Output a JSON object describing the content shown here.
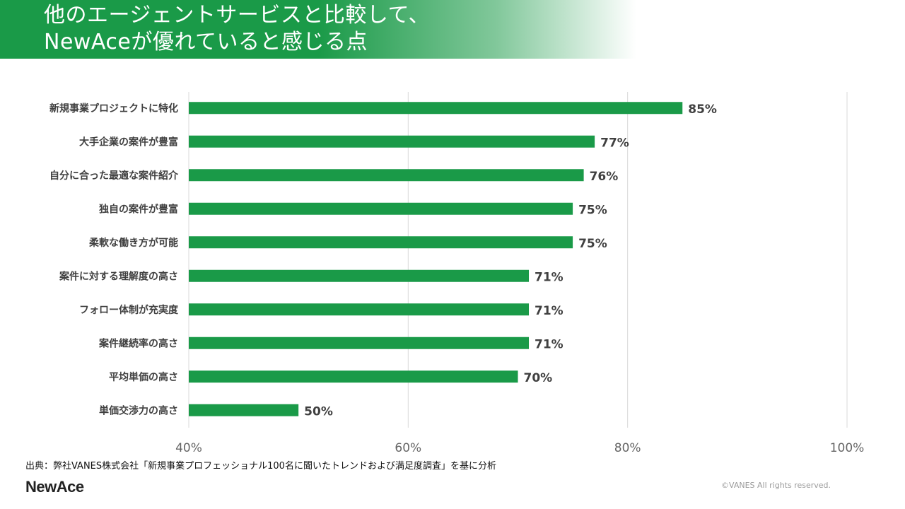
{
  "header": {
    "title_line1": "他のエージェントサービスと比較して、",
    "title_line2": "NewAceが優れていると感じる点"
  },
  "chart_data": {
    "type": "bar",
    "orientation": "horizontal",
    "categories": [
      "新規事業プロジェクトに特化",
      "大手企業の案件が豊富",
      "自分に合った最適な案件紹介",
      "独自の案件が豊富",
      "柔軟な働き方が可能",
      "案件に対する理解度の高さ",
      "フォロー体制が充実度",
      "案件継続率の高さ",
      "平均単価の高さ",
      "単価交渉力の高さ"
    ],
    "values": [
      85,
      77,
      76,
      75,
      75,
      71,
      71,
      71,
      70,
      50
    ],
    "value_labels": [
      "85%",
      "77%",
      "76%",
      "75%",
      "75%",
      "71%",
      "71%",
      "71%",
      "70%",
      "50%"
    ],
    "xlim": [
      40,
      100
    ],
    "x_ticks": [
      40,
      60,
      80,
      100
    ],
    "x_tick_labels": [
      "40%",
      "60%",
      "80%",
      "100%"
    ],
    "grid": true,
    "bar_color": "#1a9a48"
  },
  "footer": {
    "source": "出典：弊社VANES株式会社「新規事業プロフェッショナル100名に聞いたトレンドおよび満足度調査」を基に分析",
    "logo": "NewAce",
    "copyright": "©VANES All rights reserved."
  },
  "colors": {
    "brand_green": "#1a9a48",
    "grid": "#d9d9d9"
  }
}
